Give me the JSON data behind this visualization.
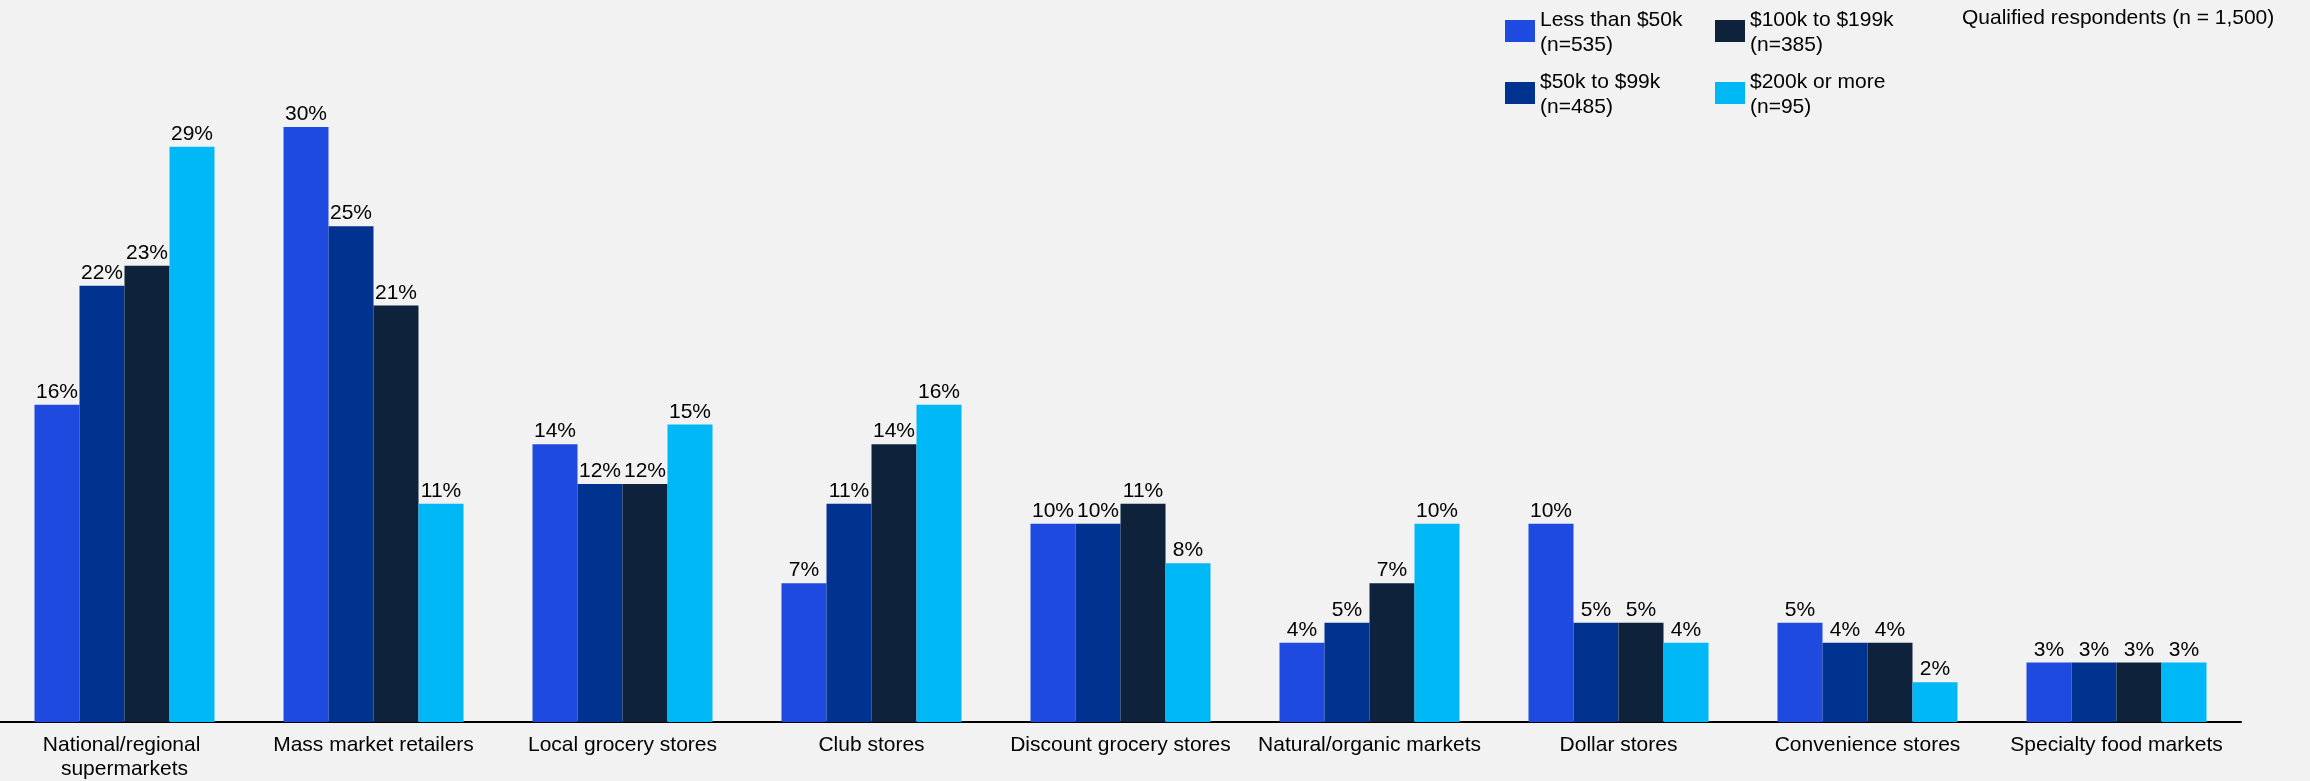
{
  "chart_data": {
    "type": "bar",
    "categories": [
      "National/regional supermarkets",
      "Mass market retailers",
      "Local grocery stores",
      "Club stores",
      "Discount grocery stores",
      "Natural/organic markets",
      "Dollar stores",
      "Convenience stores",
      "Specialty food markets"
    ],
    "series": [
      {
        "name": "Less than $50k (n=535)",
        "color": "#1f4ae0",
        "values": [
          16,
          30,
          14,
          7,
          10,
          4,
          10,
          5,
          3
        ],
        "value_labels": [
          "16%",
          "30%",
          "14%",
          "7%",
          "10%",
          "4%",
          "10%",
          "5%",
          "3%"
        ]
      },
      {
        "name": "$50k to $99k (n=485)",
        "color": "#00328f",
        "values": [
          22,
          25,
          12,
          11,
          10,
          5,
          5,
          4,
          3
        ],
        "value_labels": [
          "22%",
          "25%",
          "12%",
          "11%",
          "10%",
          "5%",
          "5%",
          "4%",
          "3%"
        ]
      },
      {
        "name": "$100k to $199k (n=385)",
        "color": "#0e223b",
        "values": [
          23,
          21,
          12,
          14,
          11,
          7,
          5,
          4,
          3
        ],
        "value_labels": [
          "23%",
          "21%",
          "12%",
          "14%",
          "11%",
          "7%",
          "5%",
          "4%",
          "3%"
        ]
      },
      {
        "name": "$200k or more (n=95)",
        "color": "#00b8f5",
        "values": [
          29,
          11,
          15,
          16,
          8,
          10,
          4,
          2,
          3
        ],
        "value_labels": [
          "29%",
          "11%",
          "15%",
          "16%",
          "8%",
          "10%",
          "4%",
          "2%",
          "3%"
        ]
      }
    ],
    "annotations": [
      "Qualified respondents (n = 1,500)"
    ],
    "legend": "top right",
    "tick_labels": "x"
  }
}
